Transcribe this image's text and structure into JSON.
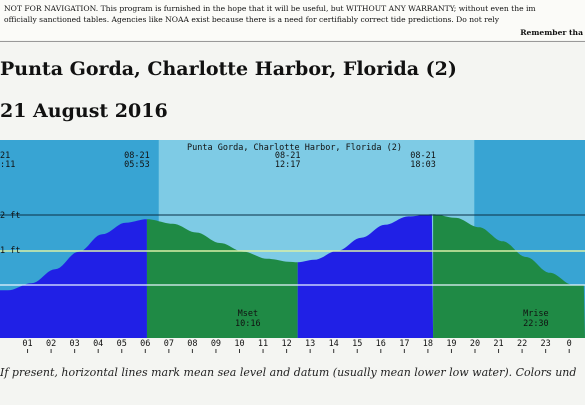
{
  "notice": {
    "line1": "NOT FOR NAVIGATION. This program is furnished in the hope that it will be useful, but WITHOUT ANY WARRANTY; without even the im",
    "line2": "officially sanctioned tables. Agencies like NOAA exist because there is a need for certifiably correct tide predictions. Do not rely",
    "line3": "Remember tha"
  },
  "page": {
    "title": "Punta Gorda, Charlotte Harbor, Florida (2)",
    "date": "21 August 2016",
    "caption": "If present, horizontal lines mark mean sea level and datum (usually mean lower low water). Colors und"
  },
  "chart_data": {
    "type": "area",
    "title": "Punta Gorda, Charlotte Harbor, Florida (2)",
    "x_unit": "hour of day",
    "y_unit": "ft",
    "y_ticks": [
      "2 ft",
      "1 ft"
    ],
    "extrema": [
      {
        "date": "21",
        "time": ":11",
        "hour": -0.2
      },
      {
        "date": "08-21",
        "time": "05:53",
        "hour": 5.9
      },
      {
        "date": "08-21",
        "time": "12:17",
        "hour": 12.3
      },
      {
        "date": "08-21",
        "time": "18:03",
        "hour": 18.05
      }
    ],
    "hour_labels": [
      "01",
      "02",
      "03",
      "04",
      "05",
      "06",
      "07",
      "08",
      "09",
      "10",
      "11",
      "12",
      "13",
      "14",
      "15",
      "16",
      "17",
      "18",
      "19",
      "20",
      "21",
      "22",
      "23",
      "0"
    ],
    "tide_points": [
      {
        "hour": 0,
        "height": -0.15
      },
      {
        "hour": 1,
        "height": 0.05
      },
      {
        "hour": 2,
        "height": 0.45
      },
      {
        "hour": 3,
        "height": 0.95
      },
      {
        "hour": 4,
        "height": 1.45
      },
      {
        "hour": 5,
        "height": 1.78
      },
      {
        "hour": 5.9,
        "height": 1.88
      },
      {
        "hour": 7,
        "height": 1.75
      },
      {
        "hour": 8,
        "height": 1.5
      },
      {
        "hour": 9,
        "height": 1.2
      },
      {
        "hour": 10,
        "height": 0.95
      },
      {
        "hour": 11,
        "height": 0.75
      },
      {
        "hour": 12,
        "height": 0.66
      },
      {
        "hour": 12.3,
        "height": 0.65
      },
      {
        "hour": 13,
        "height": 0.72
      },
      {
        "hour": 14,
        "height": 0.98
      },
      {
        "hour": 15,
        "height": 1.35
      },
      {
        "hour": 16,
        "height": 1.72
      },
      {
        "hour": 17,
        "height": 1.96
      },
      {
        "hour": 18.05,
        "height": 2.02
      },
      {
        "hour": 19,
        "height": 1.92
      },
      {
        "hour": 20,
        "height": 1.65
      },
      {
        "hour": 21,
        "height": 1.25
      },
      {
        "hour": 22,
        "height": 0.8
      },
      {
        "hour": 23,
        "height": 0.35
      },
      {
        "hour": 24,
        "height": 0.0
      }
    ],
    "events": [
      {
        "name": "Mset",
        "time": "10:16",
        "hour": 10.27
      },
      {
        "name": "Mrise",
        "time": "22:30",
        "hour": 22.5
      }
    ],
    "day_span_hours": [
      6.4,
      19.8
    ],
    "colors": {
      "night_bg": "#38a4d3",
      "day_bg": "#7ecbe5",
      "rising": "#2020e6",
      "falling": "#1f8a45",
      "ref_line": "#d8f0a8",
      "axis_text": "#111111"
    }
  }
}
